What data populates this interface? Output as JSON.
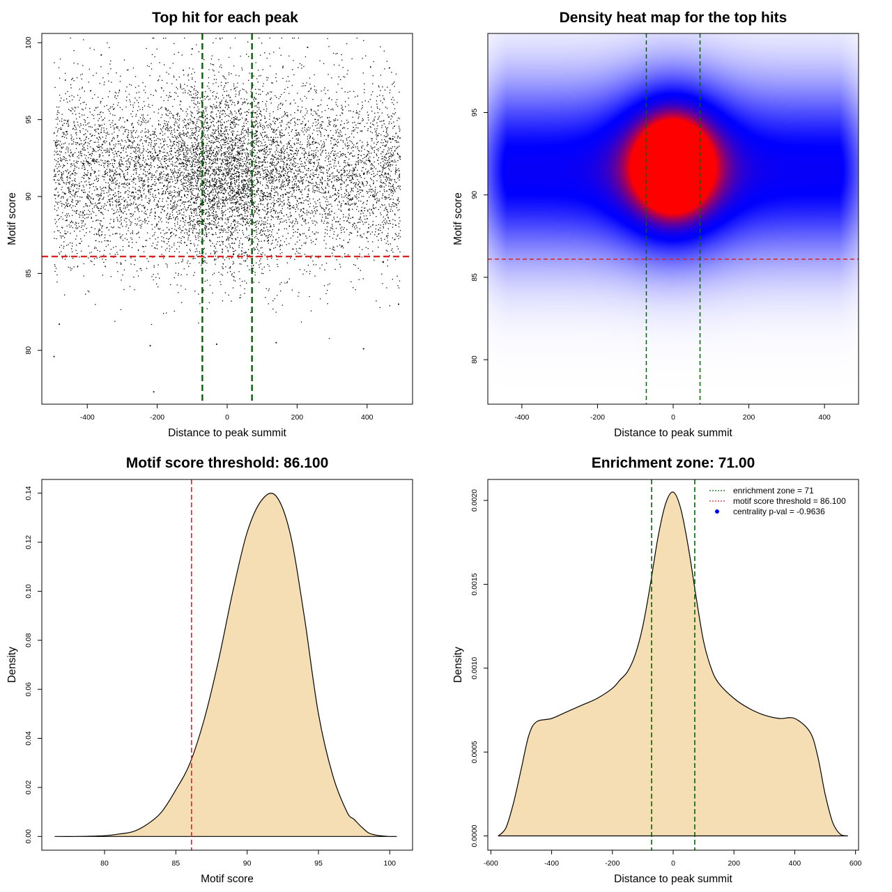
{
  "chart_data": [
    {
      "type": "scatter",
      "title": "Top hit for each peak",
      "xlabel": "Distance to peak summit",
      "ylabel": "Motif score",
      "xlim": [
        -530,
        530
      ],
      "ylim": [
        76.5,
        100.6
      ],
      "xticks": [
        "-400",
        "-200",
        "0",
        "200",
        "400"
      ],
      "yticks": [
        "80",
        "85",
        "90",
        "95",
        "100"
      ],
      "point_color": "#000000",
      "hlines": [
        {
          "y": 86.1,
          "color": "#dd2222",
          "style": "dashed"
        }
      ],
      "vlines": [
        {
          "x": -71,
          "color": "#006400",
          "style": "dashed"
        },
        {
          "x": 71,
          "color": "#006400",
          "style": "dashed"
        }
      ],
      "distribution": {
        "x_range": [
          -495,
          495
        ],
        "y_center": 91.5,
        "y_spread": 3.0,
        "central_band": 100
      },
      "samples": [
        [
          -495,
          79.6
        ],
        [
          -210,
          77.3
        ],
        [
          -30,
          80.4
        ],
        [
          -480,
          81.7
        ],
        [
          140,
          80.5
        ],
        [
          390,
          80.1
        ],
        [
          -220,
          80.3
        ],
        [
          490,
          83.0
        ],
        [
          -360,
          99.2
        ],
        [
          230,
          99.7
        ],
        [
          -100,
          99.6
        ]
      ]
    },
    {
      "type": "heatmap",
      "title": "Density heat map for the top hits",
      "xlabel": "Distance to peak summit",
      "ylabel": "Motif score",
      "xlim": [
        -490,
        490
      ],
      "ylim": [
        77.3,
        99.8
      ],
      "xticks": [
        "-400",
        "-200",
        "0",
        "200",
        "400"
      ],
      "yticks": [
        "80",
        "85",
        "90",
        "95"
      ],
      "colorscale": [
        "#ffffff",
        "#0000ff",
        "#ff0000"
      ],
      "peak": {
        "x": 0,
        "y": 91.8
      },
      "hlines": [
        {
          "y": 86.1,
          "color": "#dd2222",
          "style": "dashed"
        }
      ],
      "vlines": [
        {
          "x": -71,
          "color": "#006400",
          "style": "dashed"
        },
        {
          "x": 71,
          "color": "#006400",
          "style": "dashed"
        }
      ]
    },
    {
      "type": "area",
      "title": "Motif score threshold: 86.100",
      "xlabel": "Motif score",
      "ylabel": "Density",
      "xlim": [
        75.6,
        101.6
      ],
      "ylim": [
        -0.0056,
        0.1456
      ],
      "xticks": [
        "80",
        "85",
        "90",
        "95",
        "100"
      ],
      "yticks": [
        "0.00",
        "0.02",
        "0.04",
        "0.06",
        "0.08",
        "0.10",
        "0.12",
        "0.14"
      ],
      "fill": "#f5deb3",
      "vlines": [
        {
          "x": 86.1,
          "color": "#dd2222",
          "style": "dashed"
        }
      ],
      "x": [
        76.5,
        78,
        80,
        81,
        82,
        83,
        84,
        85,
        86,
        87,
        88,
        89,
        90,
        91,
        92,
        93,
        94,
        95,
        96,
        97,
        97.5,
        98,
        98.5,
        99,
        99.5,
        100,
        100.5
      ],
      "y": [
        0.0,
        0.0,
        0.0003,
        0.001,
        0.002,
        0.005,
        0.01,
        0.019,
        0.03,
        0.048,
        0.072,
        0.1,
        0.124,
        0.137,
        0.139,
        0.124,
        0.09,
        0.05,
        0.025,
        0.01,
        0.007,
        0.004,
        0.0015,
        0.0006,
        0.0002,
        0.0,
        0.0
      ]
    },
    {
      "type": "area",
      "title": "Enrichment zone: 71.00",
      "xlabel": "Distance to peak summit",
      "ylabel": "Density",
      "xlim": [
        -610,
        610
      ],
      "ylim": [
        -8.5e-05,
        0.002125
      ],
      "xticks": [
        "-600",
        "-400",
        "-200",
        "0",
        "200",
        "400",
        "600"
      ],
      "yticks": [
        "0.0000",
        "0.0005",
        "0.0010",
        "0.0015",
        "0.0020"
      ],
      "fill": "#f5deb3",
      "vlines": [
        {
          "x": -71,
          "color": "#006400",
          "style": "dashed"
        },
        {
          "x": 71,
          "color": "#006400",
          "style": "dashed"
        }
      ],
      "x": [
        -575,
        -550,
        -525,
        -500,
        -475,
        -450,
        -400,
        -350,
        -300,
        -250,
        -200,
        -175,
        -150,
        -125,
        -100,
        -75,
        -50,
        -25,
        0,
        25,
        50,
        75,
        100,
        125,
        150,
        200,
        250,
        300,
        350,
        400,
        450,
        475,
        500,
        525,
        550,
        575
      ],
      "y": [
        0.0,
        5e-05,
        0.0002,
        0.0004,
        0.0006,
        0.00068,
        0.0007,
        0.00074,
        0.00078,
        0.00082,
        0.00088,
        0.00093,
        0.00098,
        0.00108,
        0.00125,
        0.0015,
        0.00178,
        0.00198,
        0.00205,
        0.00195,
        0.00172,
        0.00143,
        0.00116,
        0.001,
        0.00091,
        0.00082,
        0.00076,
        0.00072,
        0.0007,
        0.0007,
        0.00062,
        0.00048,
        0.00025,
        8e-05,
        1e-05,
        0.0
      ],
      "legend": [
        {
          "label": "enrichment zone = 71",
          "color": "#006400",
          "kind": "dotted-line"
        },
        {
          "label": "motif score threshold = 86.100",
          "color": "#dd2222",
          "kind": "dotted-line"
        },
        {
          "label": "centrality p-val = -0.9636",
          "color": "#0000ff",
          "kind": "point"
        }
      ],
      "legend_position": "top-right"
    }
  ]
}
